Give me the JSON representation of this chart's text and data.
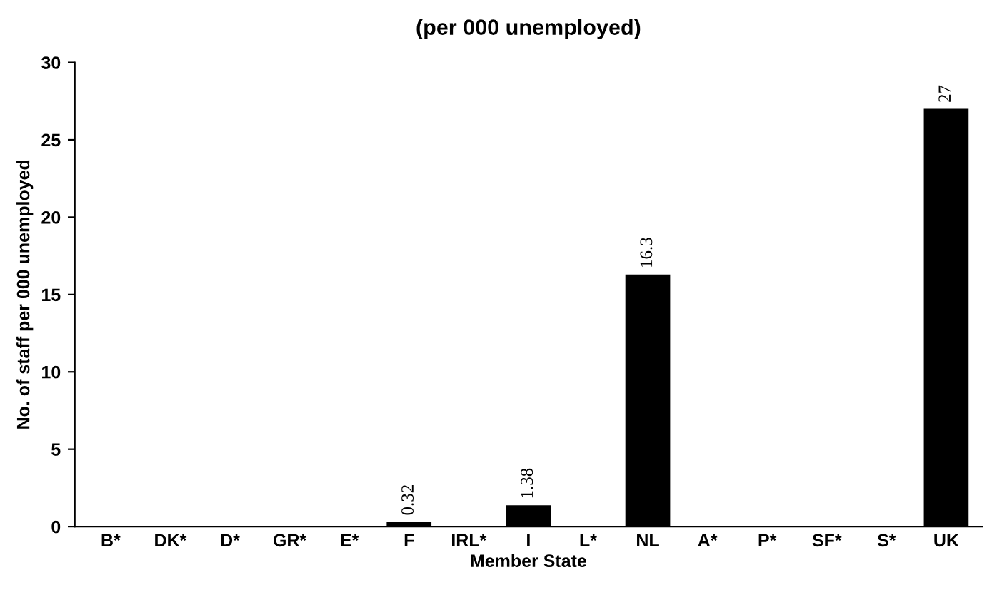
{
  "chart_data": {
    "type": "bar",
    "title": "(per 000 unemployed)",
    "xlabel": "Member State",
    "ylabel": "No. of staff per 000 unemployed",
    "categories": [
      "B*",
      "DK*",
      "D*",
      "GR*",
      "E*",
      "F",
      "IRL*",
      "I",
      "L*",
      "NL",
      "A*",
      "P*",
      "SF*",
      "S*",
      "UK"
    ],
    "values": [
      null,
      null,
      null,
      null,
      null,
      0.32,
      null,
      1.38,
      null,
      16.3,
      null,
      null,
      null,
      null,
      27
    ],
    "value_labels": [
      null,
      null,
      null,
      null,
      null,
      "0.32",
      null,
      "1.38",
      null,
      "16.3",
      null,
      null,
      null,
      null,
      "27"
    ],
    "color": "#000000",
    "ylim": [
      0,
      30
    ],
    "yticks": [
      0,
      5,
      10,
      15,
      20,
      25,
      30
    ],
    "grid": false,
    "legend": false
  }
}
